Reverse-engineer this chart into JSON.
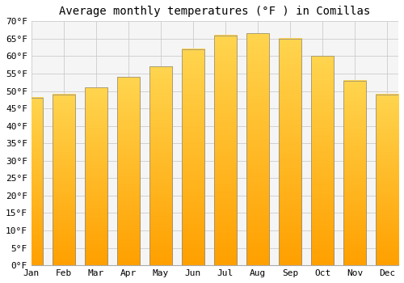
{
  "title": "Average monthly temperatures (°F ) in Comillas",
  "months": [
    "Jan",
    "Feb",
    "Mar",
    "Apr",
    "May",
    "Jun",
    "Jul",
    "Aug",
    "Sep",
    "Oct",
    "Nov",
    "Dec"
  ],
  "values": [
    48,
    49,
    51,
    54,
    57,
    62,
    66,
    66.5,
    65,
    60,
    53,
    49
  ],
  "bar_color_top": "#FFD54F",
  "bar_color_bottom": "#FFA000",
  "bar_edge_color": "#888888",
  "ylim": [
    0,
    70
  ],
  "ytick_step": 5,
  "background_color": "#ffffff",
  "plot_bg_color": "#f5f5f5",
  "grid_color": "#cccccc",
  "title_fontsize": 10,
  "tick_fontsize": 8
}
